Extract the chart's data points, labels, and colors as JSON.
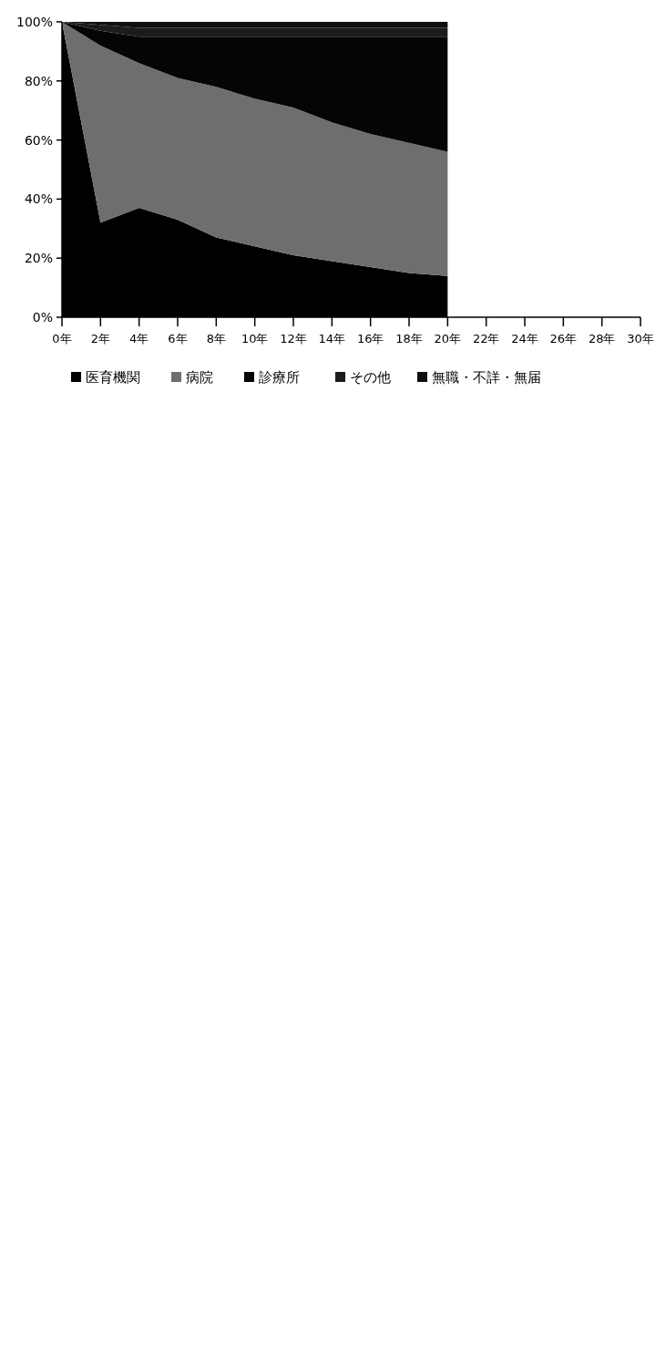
{
  "chart_data": {
    "type": "area",
    "stacked": true,
    "x": [
      0,
      2,
      4,
      6,
      8,
      10,
      12,
      14,
      16,
      18,
      20
    ],
    "xlim": [
      0,
      30
    ],
    "xticks": [
      {
        "value": 0,
        "label": "0年"
      },
      {
        "value": 2,
        "label": "2年"
      },
      {
        "value": 4,
        "label": "4年"
      },
      {
        "value": 6,
        "label": "6年"
      },
      {
        "value": 8,
        "label": "8年"
      },
      {
        "value": 10,
        "label": "10年"
      },
      {
        "value": 12,
        "label": "12年"
      },
      {
        "value": 14,
        "label": "14年"
      },
      {
        "value": 16,
        "label": "16年"
      },
      {
        "value": 18,
        "label": "18年"
      },
      {
        "value": 20,
        "label": "20年"
      },
      {
        "value": 22,
        "label": "22年"
      },
      {
        "value": 24,
        "label": "24年"
      },
      {
        "value": 26,
        "label": "26年"
      },
      {
        "value": 28,
        "label": "28年"
      },
      {
        "value": 30,
        "label": "30年"
      }
    ],
    "ylim": [
      0,
      100
    ],
    "yticks": [
      {
        "value": 0,
        "label": "0%"
      },
      {
        "value": 20,
        "label": "20%"
      },
      {
        "value": 40,
        "label": "40%"
      },
      {
        "value": 60,
        "label": "60%"
      },
      {
        "value": 80,
        "label": "80%"
      },
      {
        "value": 100,
        "label": "100%"
      }
    ],
    "legend": "bottom",
    "series": [
      {
        "name": "医育機関",
        "color": "#000000",
        "values": [
          100,
          32,
          37,
          33,
          27,
          24,
          21,
          19,
          17,
          15,
          14
        ]
      },
      {
        "name": "病院",
        "color": "#6e6e6e",
        "values": [
          0,
          60,
          49,
          48,
          51,
          50,
          50,
          47,
          45,
          44,
          42
        ]
      },
      {
        "name": "診療所",
        "color": "#050505",
        "values": [
          0,
          5,
          9,
          14,
          17,
          21,
          24,
          29,
          33,
          36,
          39
        ]
      },
      {
        "name": "その他",
        "color": "#1c1c1c",
        "values": [
          0,
          2,
          3,
          3,
          3,
          3,
          3,
          3,
          3,
          3,
          3
        ]
      },
      {
        "name": "無職・不詳・無届",
        "color": "#0f0f0f",
        "values": [
          0,
          1,
          2,
          2,
          2,
          2,
          2,
          2,
          2,
          2,
          2
        ]
      }
    ]
  }
}
